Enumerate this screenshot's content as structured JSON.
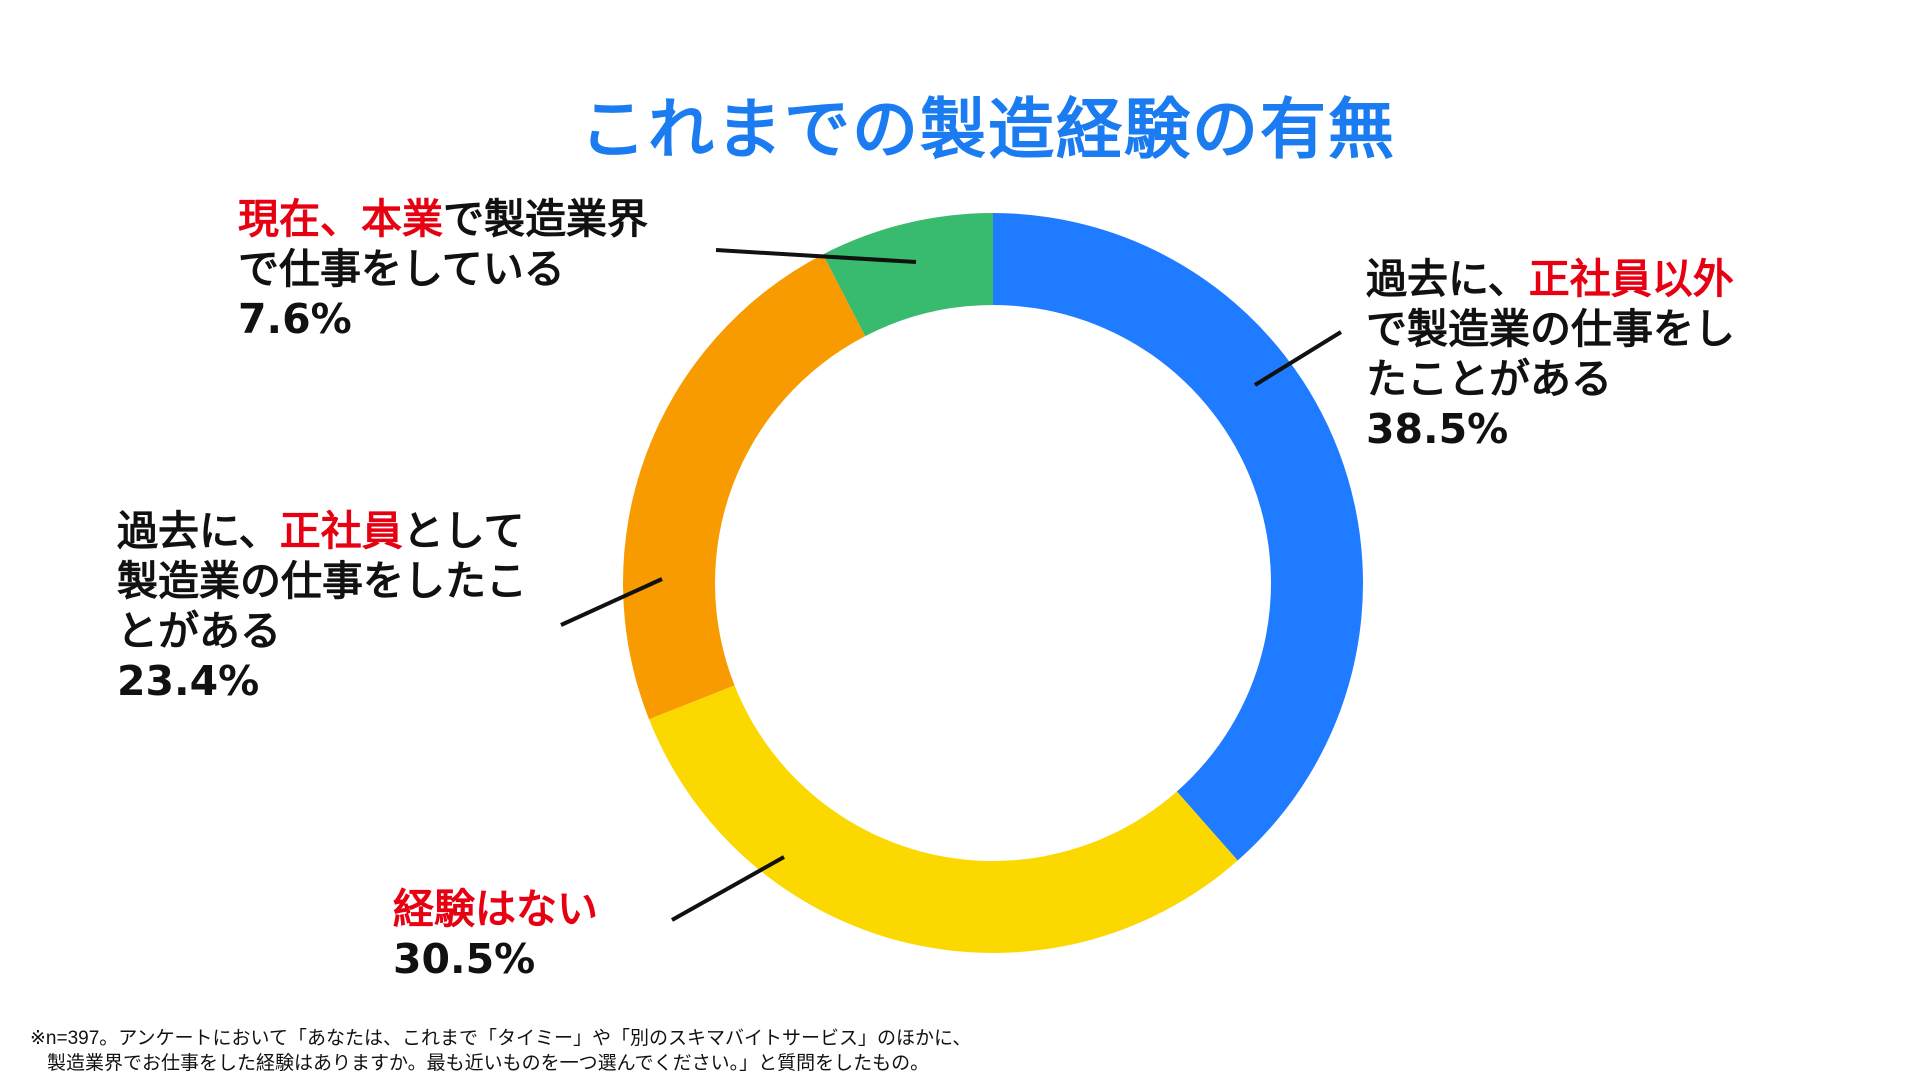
{
  "chart_data": {
    "type": "pie",
    "variant": "donut",
    "title": "これまでの製造経験の有無",
    "start_angle": "top, clockwise",
    "slices": [
      {
        "label": "過去に、正社員以外で製造業の仕事をしたことがある",
        "value": 38.5,
        "value_label": "38.5%",
        "color": "#1f7bff"
      },
      {
        "label": "経験はない",
        "value": 30.5,
        "value_label": "30.5%",
        "color": "#fbd800"
      },
      {
        "label": "過去に、正社員として製造業の仕事をしたことがある",
        "value": 23.4,
        "value_label": "23.4%",
        "color": "#f89b00"
      },
      {
        "label": "現在、本業で製造業界で仕事をしている",
        "value": 7.6,
        "value_label": "7.6%",
        "color": "#38bb6e"
      }
    ],
    "highlight_color": "#e60012",
    "legend": "none"
  },
  "labels": {
    "current": {
      "hl1": "現在、本業",
      "rest1": "で製造業界",
      "line2": "で仕事をしている",
      "pct": "7.6%"
    },
    "non_regular": {
      "pre": "過去に、",
      "hl": "正社員以外",
      "line2": "で製造業の仕事をし",
      "line3": "たことがある",
      "pct": "38.5%"
    },
    "regular": {
      "pre": "過去に、",
      "hl": "正社員",
      "post": "として",
      "line2": "製造業の仕事をしたこ",
      "line3": "とがある",
      "pct": "23.4%"
    },
    "none": {
      "hl": "経験はない",
      "pct": "30.5%"
    }
  },
  "footnote": {
    "line1": "※n=397。アンケートにおいて「あなたは、これまで「タイミー」や「別のスキマバイトサービス」のほかに、",
    "line2": "製造業界でお仕事をした経験はありますか。最も近いものを一つ選んでください。」と質問をしたもの。"
  }
}
